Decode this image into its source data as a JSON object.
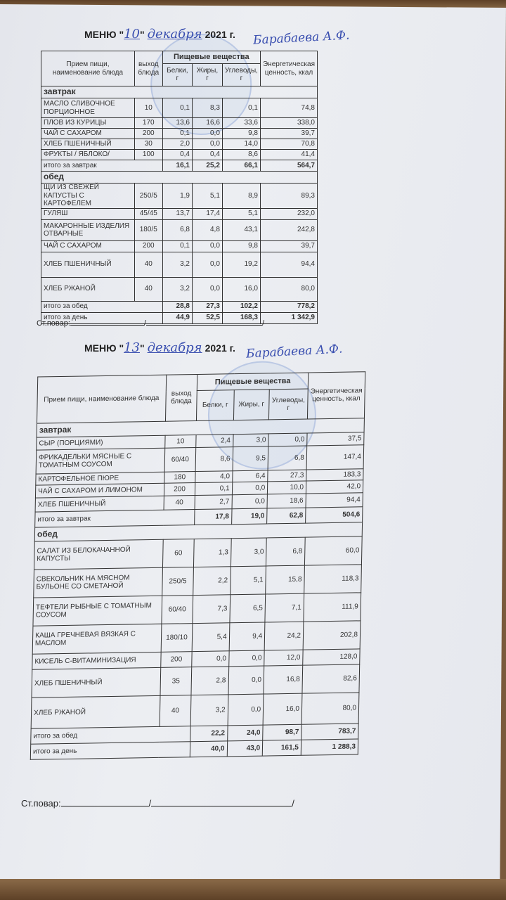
{
  "menus": [
    {
      "title_prefix": "МЕНЮ \"",
      "day": "10",
      "title_mid": "\"",
      "month": "декабря",
      "year": "2021 г.",
      "signature": "Барабаева А.Ф.",
      "headers": {
        "name": "Прием пищи, наименование блюда",
        "yield": "выход блюда",
        "nutrients": "Пищевые вещества",
        "protein": "Белки, г",
        "fat": "Жиры, г",
        "carbs": "Углеводы, г",
        "energy": "Энергетическая ценность, ккал"
      },
      "sections": [
        {
          "label": "завтрак",
          "rows": [
            {
              "name": "МАСЛО СЛИВОЧНОЕ ПОРЦИОННОЕ",
              "yield": "10",
              "protein": "0,1",
              "fat": "8,3",
              "carbs": "0,1",
              "energy": "74,8"
            },
            {
              "name": "ПЛОВ ИЗ КУРИЦЫ",
              "yield": "170",
              "protein": "13,6",
              "fat": "16,6",
              "carbs": "33,6",
              "energy": "338,0"
            },
            {
              "name": "ЧАЙ С САХАРОМ",
              "yield": "200",
              "protein": "0,1",
              "fat": "0,0",
              "carbs": "9,8",
              "energy": "39,7"
            },
            {
              "name": "ХЛЕБ ПШЕНИЧНЫЙ",
              "yield": "30",
              "protein": "2,0",
              "fat": "0,0",
              "carbs": "14,0",
              "energy": "70,8"
            },
            {
              "name": "ФРУКТЫ / ЯБЛОКО/",
              "yield": "100",
              "protein": "0,4",
              "fat": "0,4",
              "carbs": "8,6",
              "energy": "41,4"
            }
          ],
          "total": {
            "label": "итого за завтрак",
            "protein": "16,1",
            "fat": "25,2",
            "carbs": "66,1",
            "energy": "564,7"
          }
        },
        {
          "label": "обед",
          "rows": [
            {
              "name": "ЩИ ИЗ СВЕЖЕЙ КАПУСТЫ С КАРТОФЕЛЕМ",
              "yield": "250/5",
              "protein": "1,9",
              "fat": "5,1",
              "carbs": "8,9",
              "energy": "89,3"
            },
            {
              "name": "ГУЛЯШ",
              "yield": "45/45",
              "protein": "13,7",
              "fat": "17,4",
              "carbs": "5,1",
              "energy": "232,0"
            },
            {
              "name": "МАКАРОННЫЕ ИЗДЕЛИЯ ОТВАРНЫЕ",
              "yield": "180/5",
              "protein": "6,8",
              "fat": "4,8",
              "carbs": "43,1",
              "energy": "242,8"
            },
            {
              "name": "ЧАЙ С САХАРОМ",
              "yield": "200",
              "protein": "0,1",
              "fat": "0,0",
              "carbs": "9,8",
              "energy": "39,7"
            },
            {
              "name": "ХЛЕБ ПШЕНИЧНЫЙ",
              "yield": "40",
              "protein": "3,2",
              "fat": "0,0",
              "carbs": "19,2",
              "energy": "94,4"
            },
            {
              "name": "ХЛЕБ РЖАНОЙ",
              "yield": "40",
              "protein": "3,2",
              "fat": "0,0",
              "carbs": "16,0",
              "energy": "80,0"
            }
          ],
          "total": {
            "label": "итого за обед",
            "protein": "28,8",
            "fat": "27,3",
            "carbs": "102,2",
            "energy": "778,2"
          }
        }
      ],
      "day_total": {
        "label": "итого за день",
        "protein": "44,9",
        "fat": "52,5",
        "carbs": "168,3",
        "energy": "1 342,9"
      },
      "cook_label": "Ст.повар:"
    },
    {
      "title_prefix": "МЕНЮ \"",
      "day": "13",
      "title_mid": "\"",
      "month": "декабря",
      "year": "2021 г.",
      "signature": "Барабаева А.Ф.",
      "headers": {
        "name": "Прием пищи, наименование блюда",
        "yield": "выход блюда",
        "nutrients": "Пищевые вещества",
        "protein": "Белки, г",
        "fat": "Жиры, г",
        "carbs": "Углеводы, г",
        "energy": "Энергетическая ценность, ккал"
      },
      "sections": [
        {
          "label": "завтрак",
          "rows": [
            {
              "name": "СЫР (ПОРЦИЯМИ)",
              "yield": "10",
              "protein": "2,4",
              "fat": "3,0",
              "carbs": "0,0",
              "energy": "37,5"
            },
            {
              "name": "ФРИКАДЕЛЬКИ МЯСНЫЕ С ТОМАТНЫМ СОУСОМ",
              "yield": "60/40",
              "protein": "8,6",
              "fat": "9,5",
              "carbs": "6,8",
              "energy": "147,4"
            },
            {
              "name": "КАРТОФЕЛЬНОЕ ПЮРЕ",
              "yield": "180",
              "protein": "4,0",
              "fat": "6,4",
              "carbs": "27,3",
              "energy": "183,3"
            },
            {
              "name": "ЧАЙ С САХАРОМ И ЛИМОНОМ",
              "yield": "200",
              "protein": "0,1",
              "fat": "0,0",
              "carbs": "10,0",
              "energy": "42,0"
            },
            {
              "name": "ХЛЕБ ПШЕНИЧНЫЙ",
              "yield": "40",
              "protein": "2,7",
              "fat": "0,0",
              "carbs": "18,6",
              "energy": "94,4"
            }
          ],
          "total": {
            "label": "итого за завтрак",
            "protein": "17,8",
            "fat": "19,0",
            "carbs": "62,8",
            "energy": "504,6"
          }
        },
        {
          "label": "обед",
          "rows": [
            {
              "name": "САЛАТ ИЗ БЕЛОКАЧАННОЙ КАПУСТЫ",
              "yield": "60",
              "protein": "1,3",
              "fat": "3,0",
              "carbs": "6,8",
              "energy": "60,0"
            },
            {
              "name": "СВЕКОЛЬНИК НА МЯСНОМ БУЛЬОНЕ СО СМЕТАНОЙ",
              "yield": "250/5",
              "protein": "2,2",
              "fat": "5,1",
              "carbs": "15,8",
              "energy": "118,3"
            },
            {
              "name": "ТЕФТЕЛИ РЫБНЫЕ С ТОМАТНЫМ СОУСОМ",
              "yield": "60/40",
              "protein": "7,3",
              "fat": "6,5",
              "carbs": "7,1",
              "energy": "111,9"
            },
            {
              "name": "КАША ГРЕЧНЕВАЯ ВЯЗКАЯ С МАСЛОМ",
              "yield": "180/10",
              "protein": "5,4",
              "fat": "9,4",
              "carbs": "24,2",
              "energy": "202,8"
            },
            {
              "name": "КИСЕЛЬ С-ВИТАМИНИЗАЦИЯ",
              "yield": "200",
              "protein": "0,0",
              "fat": "0,0",
              "carbs": "12,0",
              "energy": "128,0"
            },
            {
              "name": "ХЛЕБ ПШЕНИЧНЫЙ",
              "yield": "35",
              "protein": "2,8",
              "fat": "0,0",
              "carbs": "16,8",
              "energy": "82,6"
            },
            {
              "name": "ХЛЕБ РЖАНОЙ",
              "yield": "40",
              "protein": "3,2",
              "fat": "0,0",
              "carbs": "16,0",
              "energy": "80,0"
            }
          ],
          "total": {
            "label": "итого за обед",
            "protein": "22,2",
            "fat": "24,0",
            "carbs": "98,7",
            "energy": "783,7"
          }
        }
      ],
      "day_total": {
        "label": "итого за день",
        "protein": "40,0",
        "fat": "43,0",
        "carbs": "161,5",
        "energy": "1 288,3"
      },
      "cook_label": "Ст.повар:"
    }
  ]
}
